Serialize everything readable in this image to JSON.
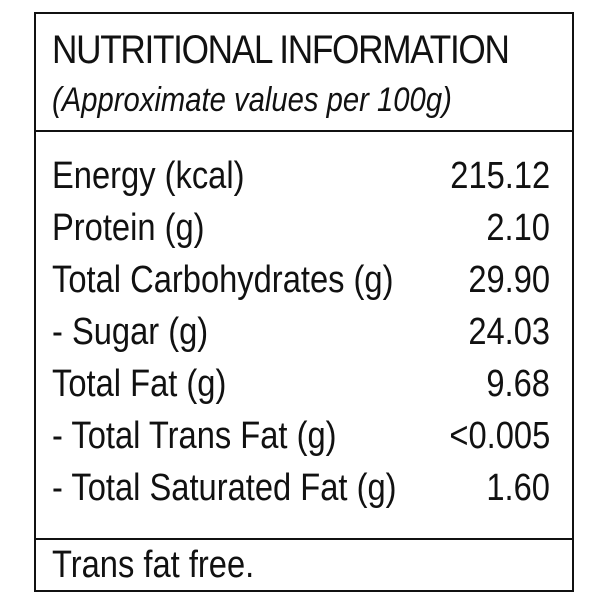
{
  "label": {
    "title": "NUTRITIONAL INFORMATION",
    "subtitle": "(Approximate values per 100g)",
    "nutrients": [
      {
        "name": "Energy (kcal)",
        "value": "215.12"
      },
      {
        "name": "Protein (g)",
        "value": "2.10"
      },
      {
        "name": "Total Carbohydrates (g)",
        "value": "29.90"
      },
      {
        "name": "- Sugar (g)",
        "value": "24.03"
      },
      {
        "name": "Total Fat (g)",
        "value": "9.68"
      },
      {
        "name": "- Total Trans Fat (g)",
        "value": "<0.005"
      },
      {
        "name": "- Total Saturated Fat (g)",
        "value": "1.60"
      }
    ],
    "footer": "Trans fat free."
  }
}
